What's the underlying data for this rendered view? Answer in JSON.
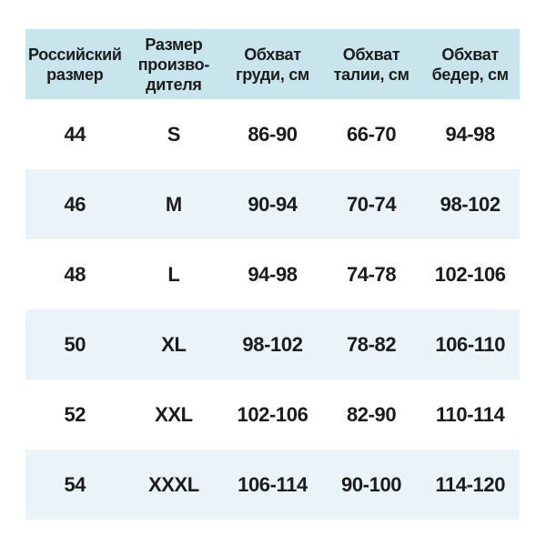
{
  "chart_data": {
    "type": "table",
    "columns": [
      "Российский\nразмер",
      "Размер\nпроизво-\nдителя",
      "Обхват\nгруди, см",
      "Обхват\nталии, см",
      "Обхват\nбедер, см"
    ],
    "rows": [
      [
        "44",
        "S",
        "86-90",
        "66-70",
        "94-98"
      ],
      [
        "46",
        "M",
        "90-94",
        "70-74",
        "98-102"
      ],
      [
        "48",
        "L",
        "94-98",
        "74-78",
        "102-106"
      ],
      [
        "50",
        "XL",
        "98-102",
        "78-82",
        "106-110"
      ],
      [
        "52",
        "XXL",
        "102-106",
        "82-90",
        "110-114"
      ],
      [
        "54",
        "XXXL",
        "106-114",
        "90-100",
        "114-120"
      ]
    ],
    "layout": {
      "header_position": "top",
      "zebra_striping": true,
      "grid_lines": false
    }
  },
  "colors": {
    "header_bg": "#c8e5ee",
    "zebra_row_bg": "#eaf4f8",
    "row_bg": "#ffffff",
    "text": "#1c1c1c",
    "page_bg": "#ffffff"
  }
}
